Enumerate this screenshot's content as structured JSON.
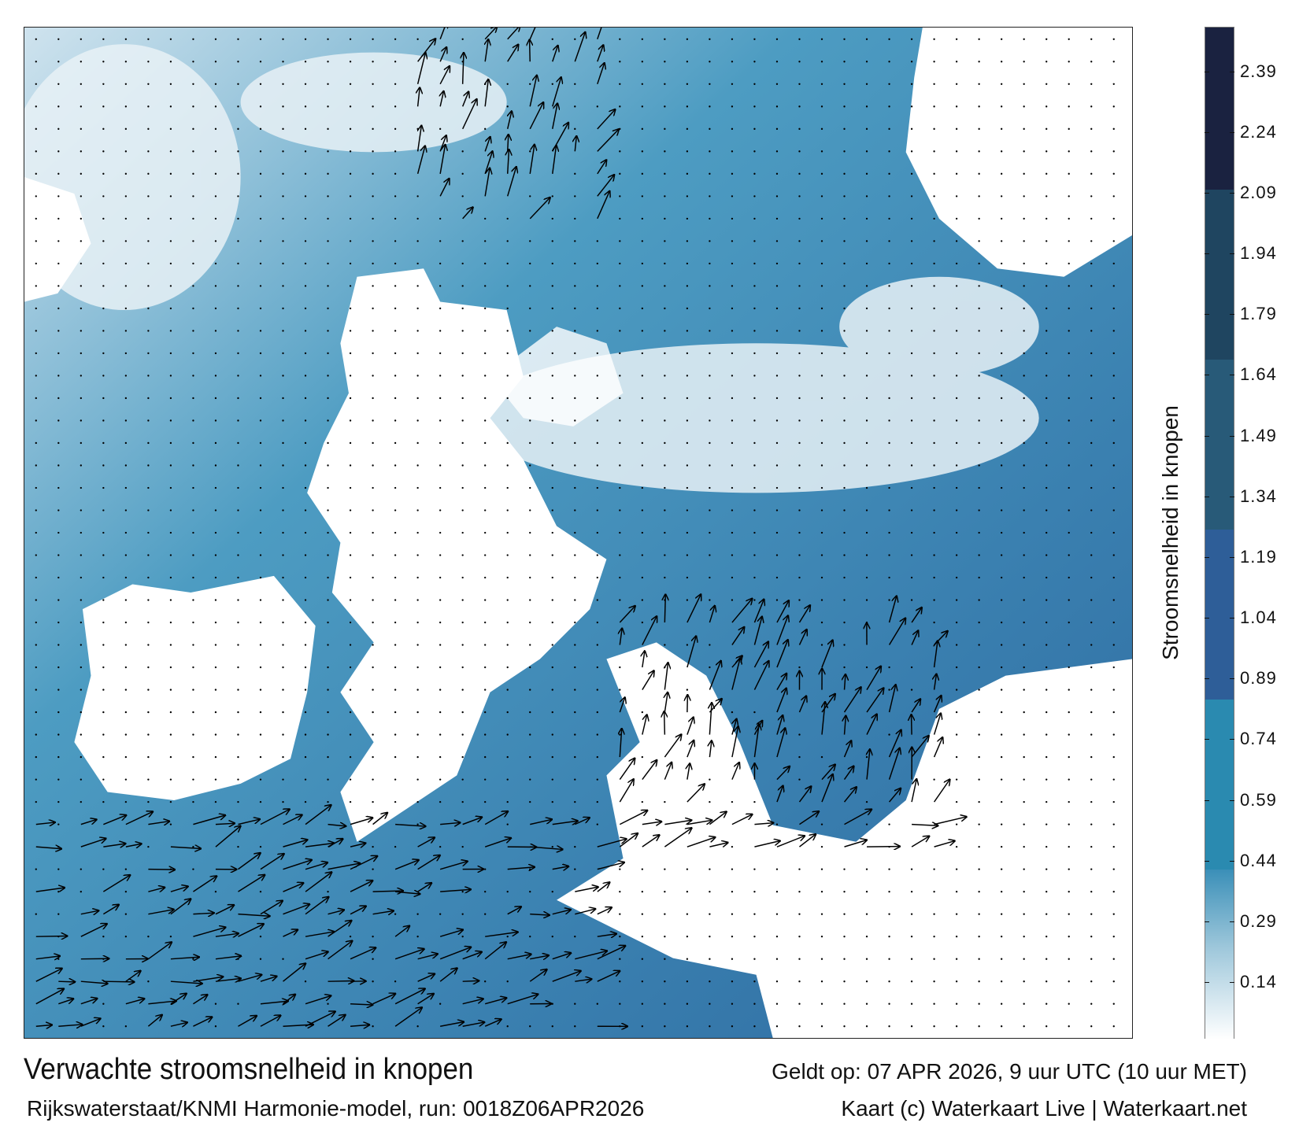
{
  "map": {
    "title": "Verwachte stroomsnelheid in knopen",
    "valid_time": "Geldt op: 07 APR 2026, 9 uur UTC (10 uur MET)",
    "model_run": "Rijkswaterstaat/KNMI Harmonie-model, run: 0018Z06APR2026",
    "credit": "Kaart (c) Waterkaart Live | Waterkaart.net"
  },
  "colorbar": {
    "label": "Stroomsnelheid in knopen",
    "min": 0,
    "max": 2.5,
    "ticks": [
      "2.39",
      "2.24",
      "2.09",
      "1.94",
      "1.79",
      "1.64",
      "1.49",
      "1.34",
      "1.19",
      "1.04",
      "0.89",
      "0.74",
      "0.59",
      "0.44",
      "0.29",
      "0.14"
    ],
    "bands": [
      {
        "from": 0.0,
        "to": 0.42,
        "color": "gradient"
      },
      {
        "from": 0.42,
        "to": 0.84,
        "color": "#2a8ab0"
      },
      {
        "from": 0.84,
        "to": 1.26,
        "color": "#2e5e98"
      },
      {
        "from": 1.26,
        "to": 1.68,
        "color": "#285a78"
      },
      {
        "from": 1.68,
        "to": 2.1,
        "color": "#1f4560"
      },
      {
        "from": 2.1,
        "to": 2.5,
        "color": "#1a2240"
      }
    ]
  }
}
